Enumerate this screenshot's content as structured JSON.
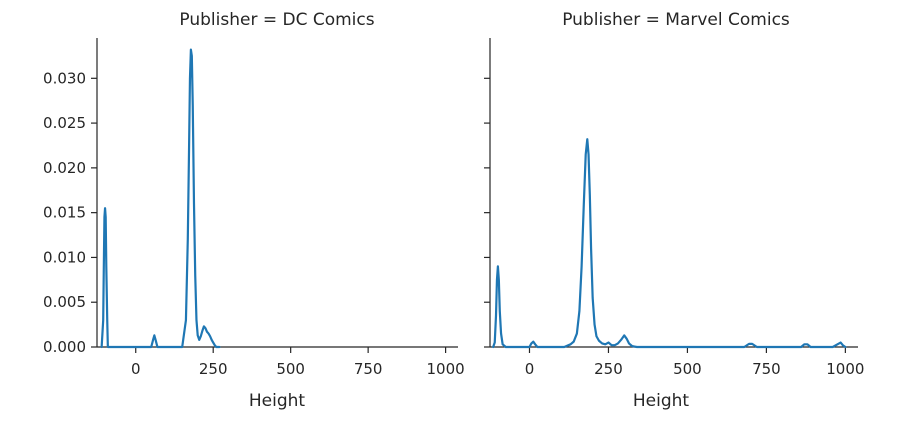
{
  "chart_data": [
    {
      "type": "line",
      "title": "Publisher = DC Comics",
      "xlabel": "Height",
      "ylabel": "",
      "xlim": [
        -125,
        1040
      ],
      "ylim": [
        0,
        0.0345
      ],
      "xticks": [
        0,
        250,
        500,
        750,
        1000
      ],
      "xtick_labels": [
        "0",
        "250",
        "500",
        "750",
        "1000"
      ],
      "yticks": [
        0.0,
        0.005,
        0.01,
        0.015,
        0.02,
        0.025,
        0.03
      ],
      "ytick_labels": [
        "0.000",
        "0.005",
        "0.010",
        "0.015",
        "0.020",
        "0.025",
        "0.030"
      ],
      "grid": false,
      "color": "#1f77b4",
      "series": [
        {
          "x": [
            -110,
            -105,
            -103,
            -101,
            -99,
            -97,
            -95,
            -92,
            -90,
            0,
            50,
            56,
            60,
            64,
            70,
            150,
            162,
            168,
            172,
            175,
            178,
            181,
            184,
            188,
            192,
            196,
            200,
            205,
            210,
            215,
            220,
            225,
            230,
            235,
            240,
            245,
            250,
            255,
            260,
            265,
            270
          ],
          "y": [
            0.0,
            0.003,
            0.009,
            0.0145,
            0.0155,
            0.0145,
            0.009,
            0.003,
            0.0,
            0.0,
            0.0,
            0.0008,
            0.0013,
            0.0008,
            0.0,
            0.0,
            0.003,
            0.012,
            0.022,
            0.03,
            0.0332,
            0.0325,
            0.027,
            0.016,
            0.008,
            0.003,
            0.0013,
            0.0008,
            0.0012,
            0.0018,
            0.0023,
            0.0021,
            0.0017,
            0.0015,
            0.0012,
            0.0008,
            0.0005,
            0.0002,
            0.0,
            0.0,
            0.0
          ]
        }
      ]
    },
    {
      "type": "line",
      "title": "Publisher = Marvel Comics",
      "xlabel": "Height",
      "ylabel": "",
      "xlim": [
        -125,
        1040
      ],
      "ylim": [
        0,
        0.0345
      ],
      "xticks": [
        0,
        250,
        500,
        750,
        1000
      ],
      "xtick_labels": [
        "0",
        "250",
        "500",
        "750",
        "1000"
      ],
      "yticks": [
        0.0,
        0.005,
        0.01,
        0.015,
        0.02,
        0.025,
        0.03
      ],
      "grid": false,
      "color": "#1f77b4",
      "series": [
        {
          "x": [
            -115,
            -110,
            -106,
            -103,
            -100,
            -97,
            -94,
            -90,
            -85,
            -75,
            0,
            6,
            12,
            18,
            25,
            110,
            130,
            140,
            150,
            158,
            165,
            172,
            178,
            183,
            187,
            191,
            195,
            200,
            206,
            212,
            220,
            230,
            240,
            250,
            260,
            270,
            280,
            290,
            300,
            308,
            315,
            325,
            340,
            400,
            600,
            680,
            695,
            705,
            720,
            860,
            870,
            880,
            890,
            960,
            975,
            985,
            992,
            1000
          ],
          "y": [
            0.0,
            0.0005,
            0.0035,
            0.0075,
            0.009,
            0.0075,
            0.004,
            0.0015,
            0.0003,
            0.0,
            0.0,
            0.0004,
            0.0006,
            0.0003,
            0.0,
            0.0,
            0.0003,
            0.0006,
            0.0015,
            0.004,
            0.009,
            0.016,
            0.0215,
            0.0232,
            0.0215,
            0.017,
            0.011,
            0.0055,
            0.0025,
            0.0012,
            0.0007,
            0.0004,
            0.0003,
            0.0005,
            0.0002,
            0.0002,
            0.0004,
            0.0008,
            0.0013,
            0.0009,
            0.0004,
            0.0001,
            0.0,
            0.0,
            0.0,
            0.0,
            0.00035,
            0.00035,
            0.0,
            0.0,
            0.0003,
            0.0003,
            0.0,
            0.0,
            0.0003,
            0.0005,
            0.0002,
            0.0
          ]
        }
      ]
    }
  ]
}
